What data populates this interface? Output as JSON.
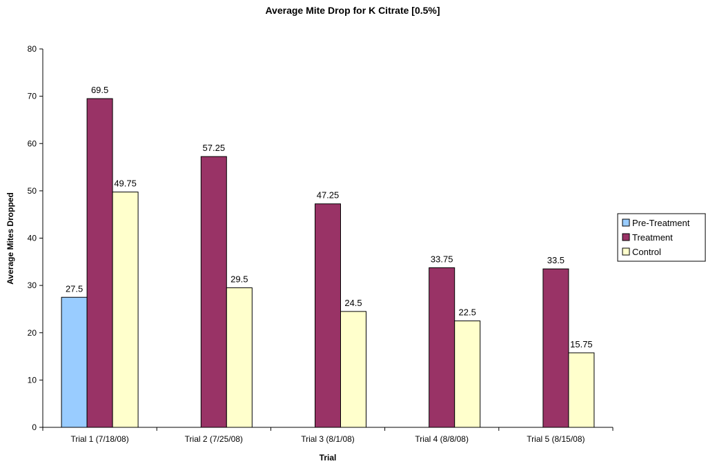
{
  "chart_data": {
    "type": "bar",
    "title": "Average Mite Drop for K Citrate [0.5%]",
    "xlabel": "Trial",
    "ylabel": "Average Mites Dropped",
    "ylim": [
      0,
      80
    ],
    "yticks": [
      0,
      10,
      20,
      30,
      40,
      50,
      60,
      70,
      80
    ],
    "grid": false,
    "legend_position": "right",
    "categories": [
      "Trial 1 (7/18/08)",
      "Trial 2 (7/25/08)",
      "Trial 3 (8/1/08)",
      "Trial 4 (8/8/08)",
      "Trial 5 (8/15/08)"
    ],
    "series": [
      {
        "name": "Pre-Treatment",
        "color": "#99ccff",
        "values": [
          27.5,
          null,
          null,
          null,
          null
        ]
      },
      {
        "name": "Treatment",
        "color": "#993366",
        "values": [
          69.5,
          57.25,
          47.25,
          33.75,
          33.5
        ]
      },
      {
        "name": "Control",
        "color": "#ffffcc",
        "values": [
          49.75,
          29.5,
          24.5,
          22.5,
          15.75
        ]
      }
    ]
  }
}
